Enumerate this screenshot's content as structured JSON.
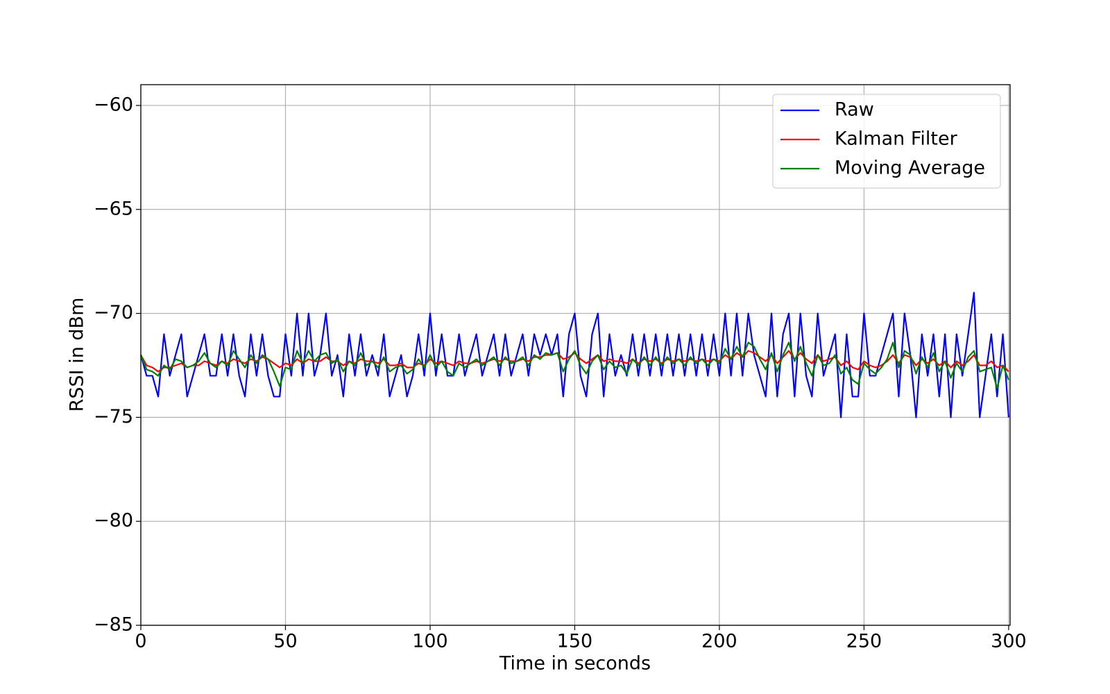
{
  "chart_data": {
    "type": "line",
    "x_label": "Time in seconds",
    "y_label": "RSSI in dBm",
    "x": [
      0,
      2,
      4,
      6,
      8,
      10,
      12,
      14,
      16,
      18,
      20,
      22,
      24,
      26,
      28,
      30,
      32,
      34,
      36,
      38,
      40,
      42,
      44,
      46,
      48,
      50,
      52,
      54,
      56,
      58,
      60,
      62,
      64,
      66,
      68,
      70,
      72,
      74,
      76,
      78,
      80,
      82,
      84,
      86,
      88,
      90,
      92,
      94,
      96,
      98,
      100,
      102,
      104,
      106,
      108,
      110,
      112,
      114,
      116,
      118,
      120,
      122,
      124,
      126,
      128,
      130,
      132,
      134,
      136,
      138,
      140,
      142,
      144,
      146,
      148,
      150,
      152,
      154,
      156,
      158,
      160,
      162,
      164,
      166,
      168,
      170,
      172,
      174,
      176,
      178,
      180,
      182,
      184,
      186,
      188,
      190,
      192,
      194,
      196,
      198,
      200,
      202,
      204,
      206,
      208,
      210,
      212,
      214,
      216,
      218,
      220,
      222,
      224,
      226,
      228,
      230,
      232,
      234,
      236,
      238,
      240,
      242,
      244,
      246,
      248,
      250,
      252,
      254,
      256,
      258,
      260,
      262,
      264,
      266,
      268,
      270,
      272,
      274,
      276,
      278,
      280,
      282,
      284,
      286,
      288,
      290,
      292,
      294,
      296,
      298,
      300
    ],
    "series": [
      {
        "name": "Raw",
        "color": "#0000ff",
        "values": [
          -72,
          -73,
          -73,
          -74,
          -71,
          -73,
          -72,
          -71,
          -74,
          -73,
          -72,
          -71,
          -73,
          -73,
          -71,
          -73,
          -71,
          -73,
          -74,
          -71,
          -73,
          -71,
          -73,
          -74,
          -74,
          -71,
          -73,
          -70,
          -73,
          -70,
          -73,
          -72,
          -70,
          -73,
          -72,
          -74,
          -71,
          -73,
          -71,
          -73,
          -72,
          -73,
          -71,
          -74,
          -73,
          -72,
          -74,
          -73,
          -71,
          -73,
          -70,
          -73,
          -71,
          -73,
          -73,
          -71,
          -73,
          -72,
          -71,
          -73,
          -72,
          -71,
          -73,
          -71,
          -73,
          -72,
          -71,
          -73,
          -71,
          -72,
          -71,
          -72,
          -71,
          -74,
          -71,
          -70,
          -73,
          -74,
          -71,
          -70,
          -74,
          -71,
          -73,
          -72,
          -73,
          -71,
          -73,
          -71,
          -73,
          -71,
          -73,
          -71,
          -73,
          -71,
          -73,
          -71,
          -73,
          -71,
          -73,
          -71,
          -73,
          -70,
          -73,
          -70,
          -73,
          -70,
          -72,
          -73,
          -74,
          -70,
          -74,
          -71,
          -70,
          -74,
          -70,
          -73,
          -74,
          -70,
          -73,
          -72,
          -71,
          -75,
          -71,
          -74,
          -74,
          -70,
          -73,
          -73,
          -72,
          -71,
          -70,
          -74,
          -70,
          -72,
          -75,
          -71,
          -73,
          -71,
          -74,
          -71,
          -75,
          -71,
          -73,
          -71,
          -69,
          -75,
          -73,
          -71,
          -74,
          -71,
          -75
        ]
      },
      {
        "name": "Kalman Filter",
        "color": "#ff0000",
        "values": [
          -72.0,
          -72.5,
          -72.6,
          -72.8,
          -72.6,
          -72.6,
          -72.5,
          -72.4,
          -72.6,
          -72.5,
          -72.5,
          -72.3,
          -72.4,
          -72.5,
          -72.3,
          -72.4,
          -72.2,
          -72.3,
          -72.4,
          -72.2,
          -72.3,
          -72.1,
          -72.2,
          -72.4,
          -72.6,
          -72.4,
          -72.5,
          -72.2,
          -72.4,
          -72.2,
          -72.3,
          -72.3,
          -72.1,
          -72.3,
          -72.3,
          -72.5,
          -72.3,
          -72.4,
          -72.2,
          -72.3,
          -72.3,
          -72.4,
          -72.2,
          -72.5,
          -72.5,
          -72.4,
          -72.6,
          -72.6,
          -72.4,
          -72.5,
          -72.2,
          -72.4,
          -72.3,
          -72.4,
          -72.5,
          -72.3,
          -72.4,
          -72.4,
          -72.3,
          -72.4,
          -72.3,
          -72.2,
          -72.3,
          -72.2,
          -72.3,
          -72.3,
          -72.2,
          -72.3,
          -72.1,
          -72.1,
          -72.0,
          -72.0,
          -71.9,
          -72.2,
          -72.1,
          -71.9,
          -72.2,
          -72.4,
          -72.2,
          -72.0,
          -72.3,
          -72.2,
          -72.3,
          -72.3,
          -72.4,
          -72.2,
          -72.4,
          -72.2,
          -72.3,
          -72.2,
          -72.4,
          -72.2,
          -72.3,
          -72.2,
          -72.3,
          -72.2,
          -72.3,
          -72.2,
          -72.3,
          -72.2,
          -72.3,
          -72.0,
          -72.2,
          -71.9,
          -72.1,
          -71.8,
          -71.9,
          -72.1,
          -72.3,
          -72.0,
          -72.4,
          -72.1,
          -71.8,
          -72.2,
          -71.9,
          -72.2,
          -72.4,
          -72.0,
          -72.3,
          -72.2,
          -72.1,
          -72.5,
          -72.3,
          -72.6,
          -72.7,
          -72.3,
          -72.5,
          -72.6,
          -72.5,
          -72.3,
          -72.0,
          -72.4,
          -72.0,
          -72.1,
          -72.5,
          -72.2,
          -72.4,
          -72.2,
          -72.5,
          -72.3,
          -72.6,
          -72.3,
          -72.5,
          -72.3,
          -72.0,
          -72.5,
          -72.5,
          -72.3,
          -72.6,
          -72.5,
          -72.8
        ]
      },
      {
        "name": "Moving Average",
        "color": "#008000",
        "values": [
          -72.0,
          -72.7,
          -72.8,
          -73.0,
          -72.5,
          -72.7,
          -72.2,
          -72.3,
          -72.6,
          -72.5,
          -72.3,
          -71.9,
          -72.4,
          -72.6,
          -72.3,
          -72.5,
          -71.8,
          -72.2,
          -72.6,
          -72.0,
          -72.4,
          -72.0,
          -72.2,
          -72.8,
          -73.5,
          -72.6,
          -72.7,
          -71.8,
          -72.4,
          -71.8,
          -72.3,
          -72.0,
          -71.9,
          -72.4,
          -72.2,
          -72.8,
          -72.3,
          -72.5,
          -71.9,
          -72.5,
          -72.3,
          -72.6,
          -72.1,
          -72.8,
          -72.6,
          -72.5,
          -72.9,
          -72.7,
          -72.2,
          -72.6,
          -72.0,
          -72.6,
          -72.3,
          -72.8,
          -73.0,
          -72.4,
          -72.6,
          -72.4,
          -72.2,
          -72.5,
          -72.3,
          -72.1,
          -72.5,
          -72.1,
          -72.4,
          -72.3,
          -72.1,
          -72.5,
          -72.0,
          -72.2,
          -71.9,
          -72.0,
          -71.9,
          -72.8,
          -72.2,
          -71.8,
          -72.5,
          -72.9,
          -72.3,
          -72.0,
          -72.7,
          -72.3,
          -72.6,
          -72.5,
          -72.9,
          -72.2,
          -72.5,
          -72.1,
          -72.5,
          -72.1,
          -72.5,
          -72.1,
          -72.4,
          -72.2,
          -72.5,
          -72.1,
          -72.4,
          -72.2,
          -72.5,
          -72.2,
          -72.4,
          -71.7,
          -72.2,
          -71.6,
          -72.1,
          -71.4,
          -71.6,
          -72.2,
          -72.7,
          -71.9,
          -72.8,
          -72.0,
          -71.4,
          -72.3,
          -71.6,
          -72.4,
          -73.0,
          -72.0,
          -72.5,
          -72.4,
          -72.0,
          -72.9,
          -72.6,
          -73.2,
          -73.4,
          -72.4,
          -72.7,
          -72.9,
          -72.6,
          -72.2,
          -71.4,
          -72.6,
          -71.8,
          -72.0,
          -72.9,
          -72.1,
          -72.6,
          -71.9,
          -72.8,
          -72.3,
          -73.1,
          -72.4,
          -72.8,
          -72.1,
          -71.8,
          -72.8,
          -72.7,
          -72.6,
          -73.6,
          -72.5,
          -73.2
        ]
      }
    ],
    "xlim": [
      0,
      300.5
    ],
    "xticks": [
      0,
      50,
      100,
      150,
      200,
      250,
      300
    ],
    "ylim": [
      -85,
      -59
    ],
    "yticks": [
      {
        "value": -85,
        "label": "−85"
      },
      {
        "value": -80,
        "label": "−80"
      },
      {
        "value": -75,
        "label": "−75"
      },
      {
        "value": -70,
        "label": "−70"
      },
      {
        "value": -65,
        "label": "−65"
      },
      {
        "value": -60,
        "label": "−60"
      }
    ],
    "grid": true,
    "legend": "upper right"
  }
}
